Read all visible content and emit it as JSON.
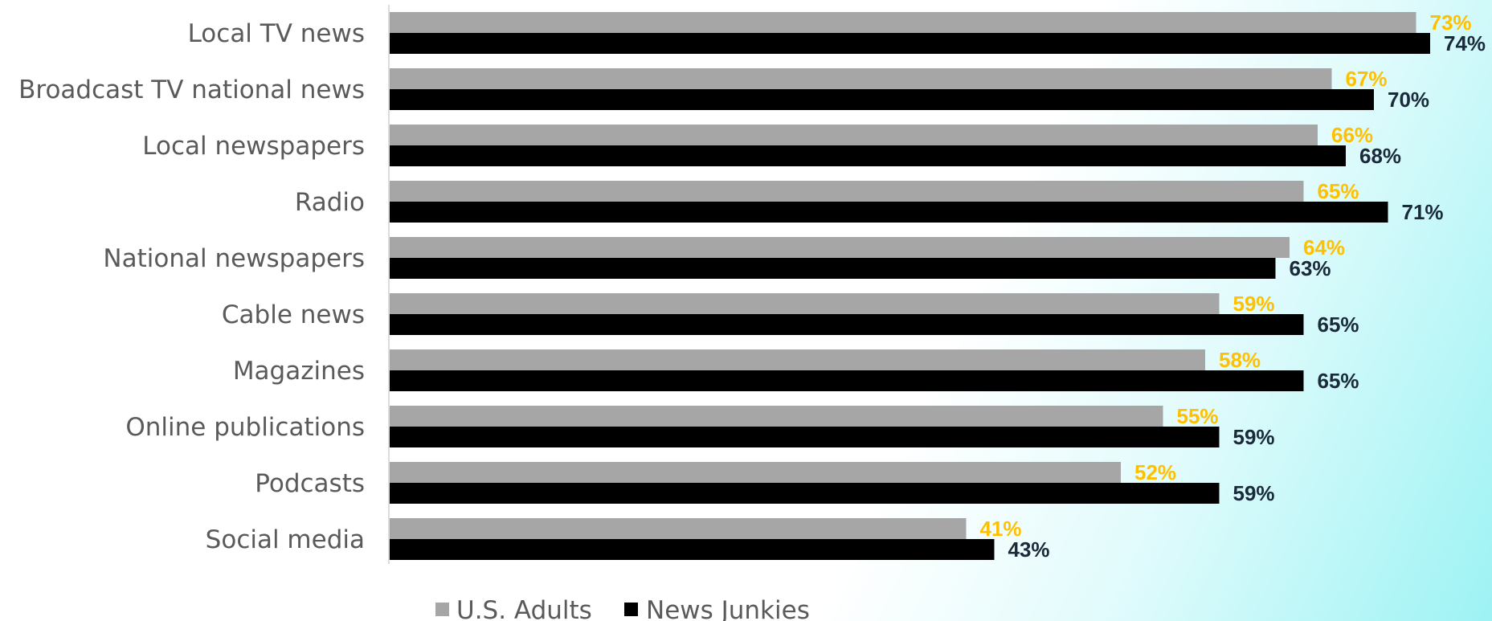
{
  "chart_data": {
    "type": "bar",
    "orientation": "horizontal",
    "categories": [
      "Local TV news",
      "Broadcast TV national news",
      "Local newspapers",
      "Radio",
      "National newspapers",
      "Cable news",
      "Magazines",
      "Online publications",
      "Podcasts",
      "Social media"
    ],
    "series": [
      {
        "name": "U.S. Adults",
        "values": [
          73,
          67,
          66,
          65,
          64,
          59,
          58,
          55,
          52,
          41
        ],
        "labels": [
          "73%",
          "67%",
          "66%",
          "65%",
          "64%",
          "59%",
          "58%",
          "55%",
          "52%",
          "41%"
        ],
        "color": "#a6a6a6",
        "label_color": "#ffc000"
      },
      {
        "name": "News Junkies",
        "values": [
          74,
          70,
          68,
          71,
          63,
          65,
          65,
          59,
          59,
          43
        ],
        "labels": [
          "74%",
          "70%",
          "68%",
          "71%",
          "63%",
          "65%",
          "65%",
          "59%",
          "59%",
          "43%"
        ],
        "color": "#000000",
        "label_color": "#1a2a3a"
      }
    ],
    "xlim": [
      0,
      74
    ],
    "grid": false,
    "legend_position": "bottom"
  }
}
